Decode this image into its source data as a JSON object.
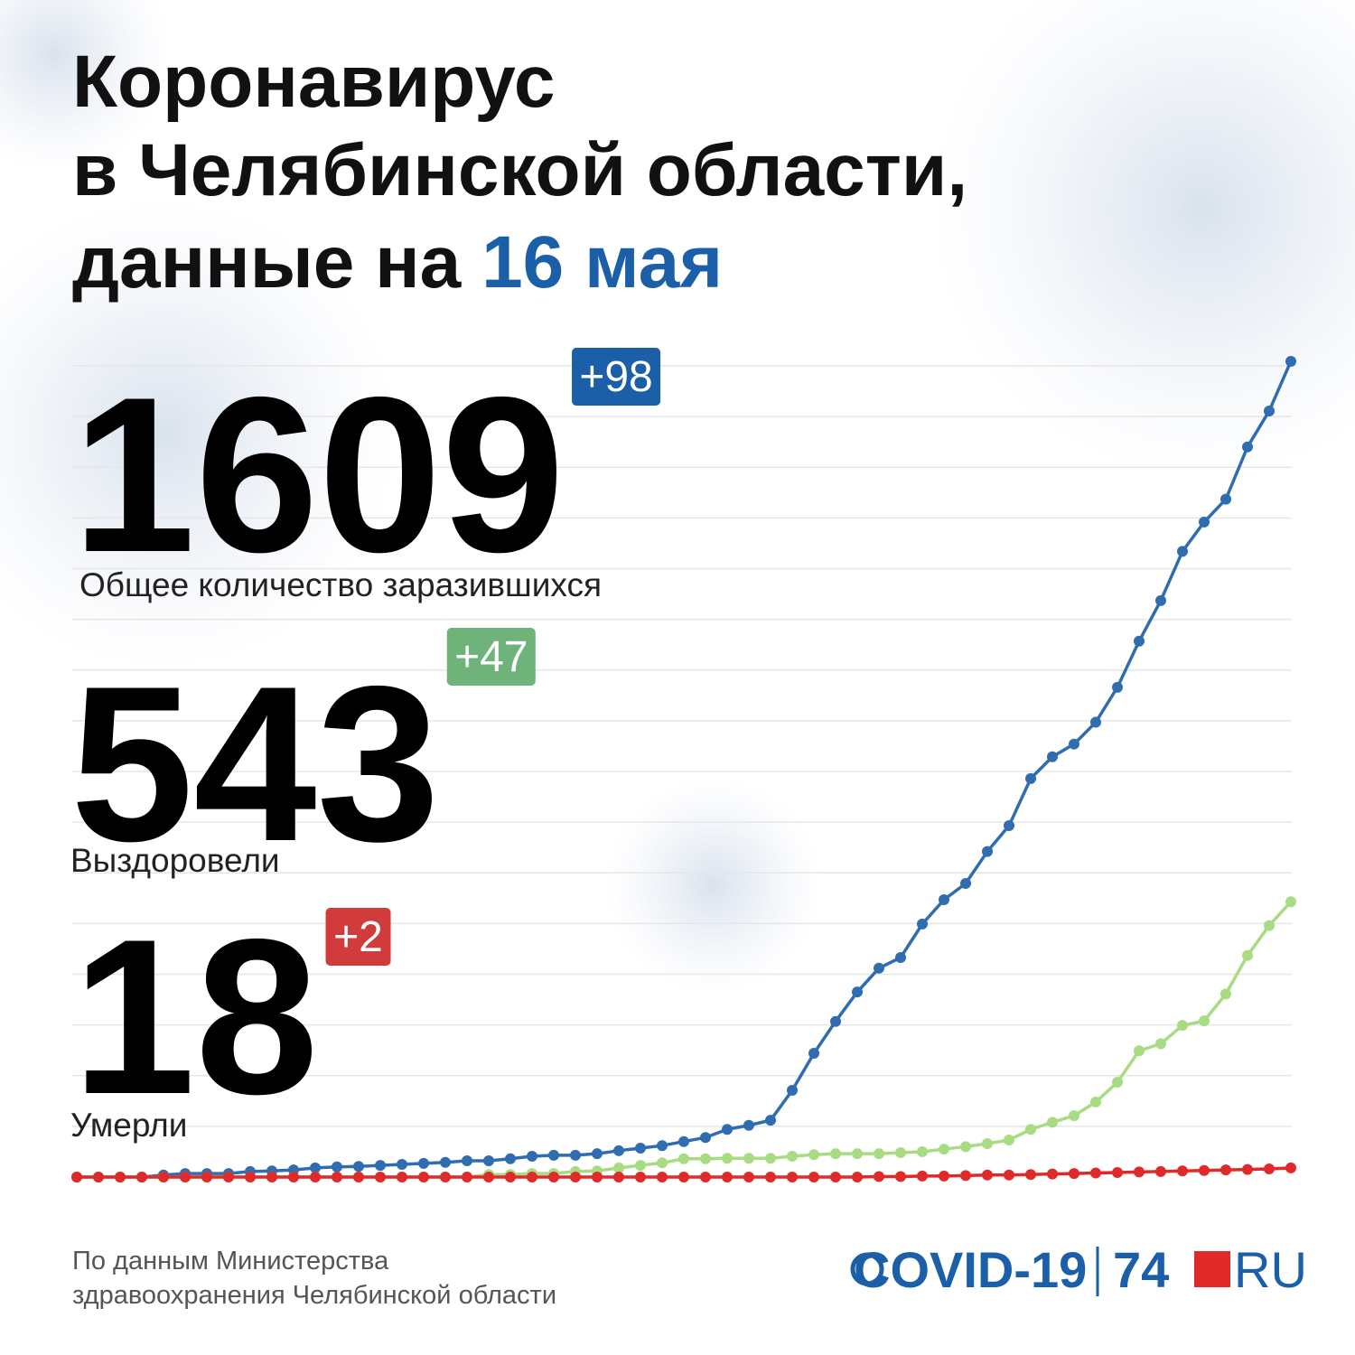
{
  "header": {
    "title_lines": [
      "Коронавирус",
      "в Челябинской области,",
      "данные на"
    ],
    "date": "16 мая"
  },
  "stats": [
    {
      "value": 1609,
      "change": "+98",
      "label": "Общее количество заразившихся",
      "color": "#1a5fa8"
    },
    {
      "value": 543,
      "change": "+47",
      "label": "Выздоровели",
      "color": "#6db37a"
    },
    {
      "value": 18,
      "change": "+2",
      "label": "Умерли",
      "color": "#d23b3b"
    }
  ],
  "chart_data": {
    "type": "line",
    "ylim": [
      0,
      1600
    ],
    "yticks": [
      100,
      200,
      300,
      400,
      500,
      600,
      700,
      800,
      900,
      1000,
      1100,
      1200,
      1300,
      1400,
      1500,
      1600
    ],
    "grid": true,
    "series": [
      {
        "name": "Общее количество заразившихся",
        "color": "#2f6db0",
        "values": [
          0,
          0,
          0,
          0,
          4,
          7,
          7,
          7,
          11,
          12,
          14,
          18,
          20,
          21,
          23,
          25,
          27,
          29,
          32,
          32,
          36,
          41,
          43,
          43,
          46,
          52,
          57,
          62,
          70,
          78,
          94,
          102,
          112,
          171,
          244,
          307,
          365,
          412,
          433,
          499,
          547,
          579,
          642,
          693,
          786,
          829,
          854,
          897,
          966,
          1057,
          1137,
          1234,
          1292,
          1337,
          1440,
          1511,
          1609
        ]
      },
      {
        "name": "Выздоровели",
        "color": "#a8dc82",
        "values": [
          0,
          0,
          0,
          0,
          0,
          0,
          0,
          0,
          0,
          0,
          0,
          0,
          0,
          0,
          0,
          0,
          0,
          0,
          0,
          5,
          5,
          7,
          7,
          11,
          12,
          18,
          23,
          28,
          36,
          36,
          37,
          37,
          37,
          41,
          44,
          46,
          46,
          46,
          48,
          50,
          55,
          60,
          66,
          73,
          94,
          108,
          121,
          148,
          187,
          249,
          263,
          299,
          308,
          361,
          437,
          496,
          543
        ]
      },
      {
        "name": "Умерли",
        "color": "#e02a2a",
        "values": [
          0,
          0,
          0,
          0,
          0,
          0,
          0,
          0,
          0,
          0,
          0,
          0,
          0,
          0,
          0,
          0,
          0,
          0,
          0,
          0,
          0,
          0,
          0,
          0,
          0,
          0,
          0,
          0,
          0,
          0,
          0,
          0,
          0,
          0,
          0,
          0,
          0,
          1,
          1,
          2,
          2,
          3,
          4,
          4,
          5,
          6,
          7,
          8,
          9,
          10,
          11,
          12,
          13,
          14,
          15,
          16,
          18
        ]
      }
    ]
  },
  "footer": {
    "source_lines": [
      "По данным Министерства",
      "здравоохранения Челябинской области"
    ],
    "logo": {
      "covid": "COVID-19",
      "num": "74",
      "ru": "RU"
    }
  }
}
